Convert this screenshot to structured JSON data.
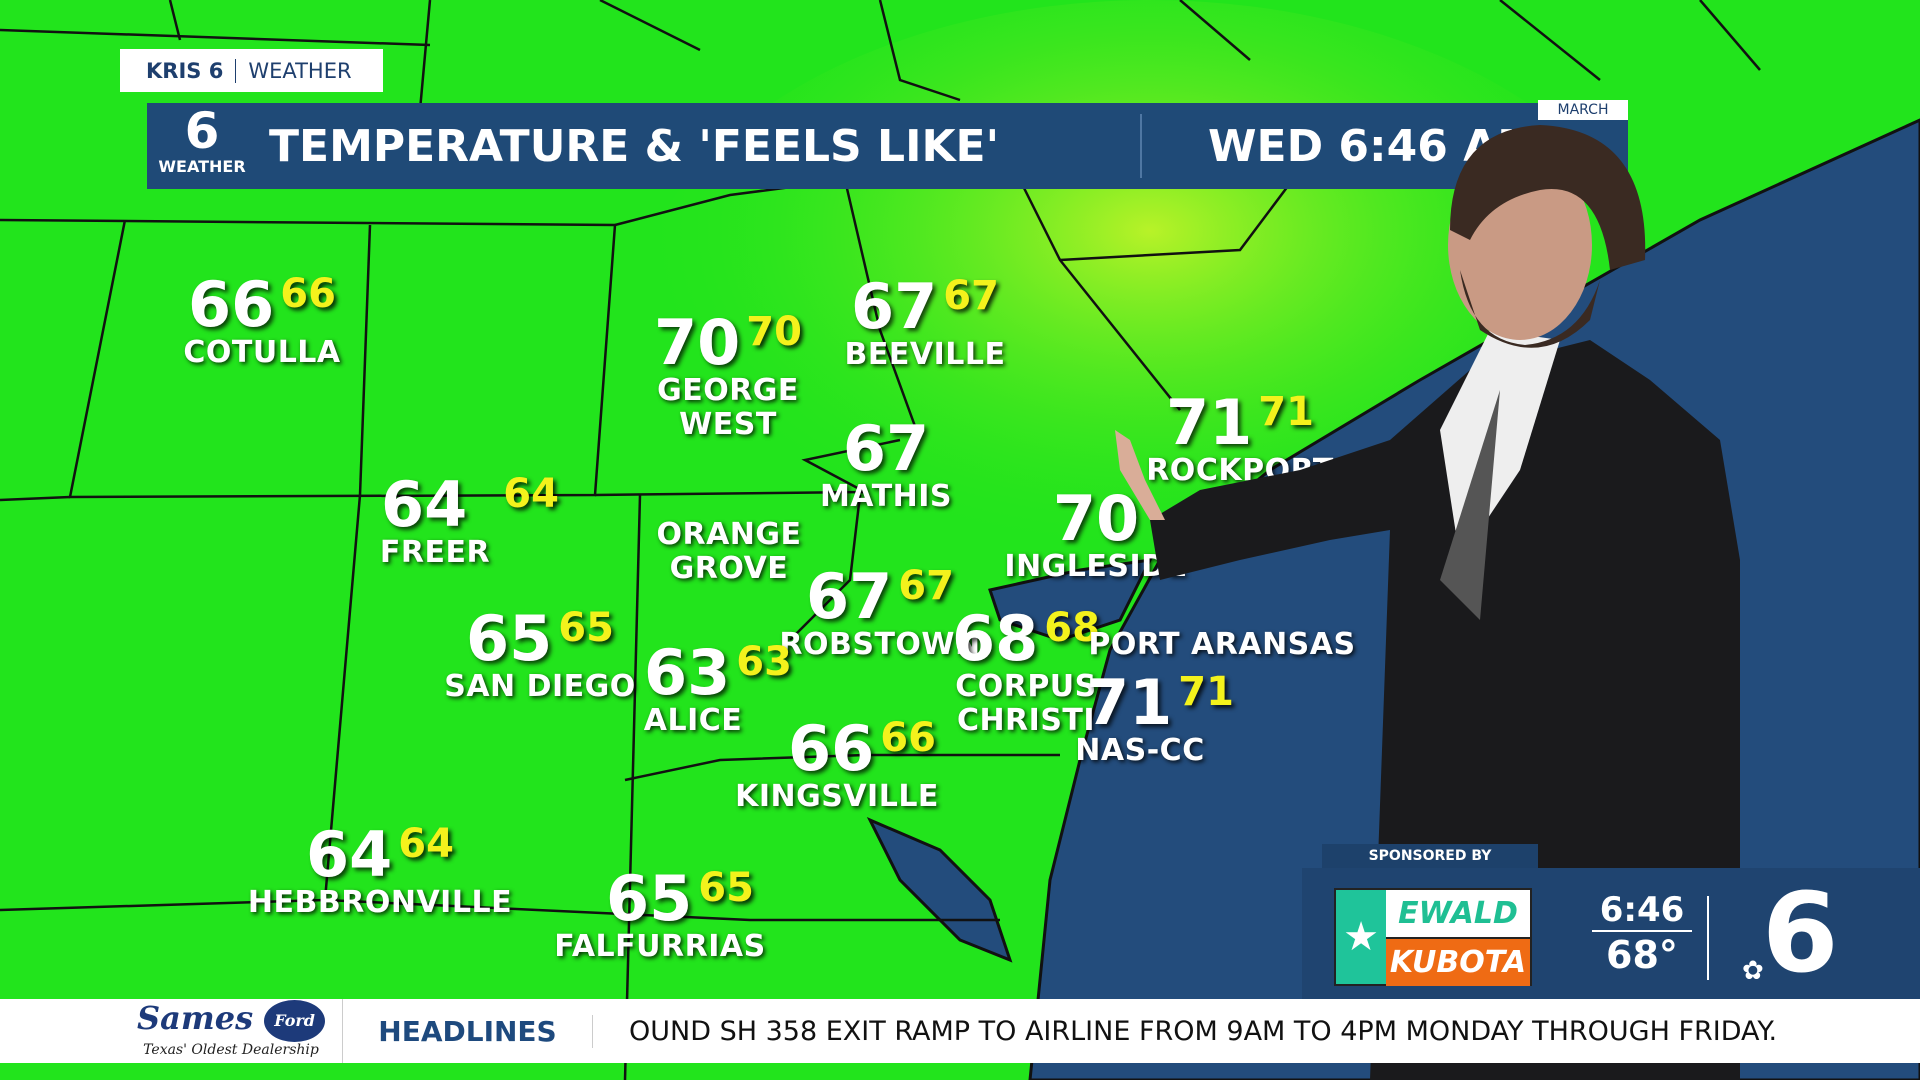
{
  "brand_tab": {
    "station": "KRIS 6",
    "section": "WEATHER"
  },
  "header": {
    "logo_number": "6",
    "logo_label": "WEATHER",
    "title": "TEMPERATURE & 'FEELS LIKE'",
    "time": "WED 6:46 AM",
    "month": "MARCH"
  },
  "cities": [
    {
      "name": "COTULLA",
      "temp": "66",
      "feels": "66"
    },
    {
      "name": "GEORGE WEST",
      "temp": "70",
      "feels": "70"
    },
    {
      "name": "BEEVILLE",
      "temp": "67",
      "feels": "67"
    },
    {
      "name": "MATHIS",
      "temp": "67",
      "feels": ""
    },
    {
      "name": "ROCKPORT",
      "temp": "71",
      "feels": "71"
    },
    {
      "name": "FREER",
      "temp": "64",
      "feels": "64"
    },
    {
      "name": "ORANGE GROVE",
      "temp": "",
      "feels": ""
    },
    {
      "name": "INGLESIDE",
      "temp": "70",
      "feels": ""
    },
    {
      "name": "ROBSTOWN",
      "temp": "67",
      "feels": "67"
    },
    {
      "name": "SAN DIEGO",
      "temp": "65",
      "feels": "65"
    },
    {
      "name": "ALICE",
      "temp": "63",
      "feels": "63"
    },
    {
      "name": "CORPUS CHRISTI",
      "temp": "68",
      "feels": "68"
    },
    {
      "name": "PORT ARANSAS",
      "temp": "",
      "feels": ""
    },
    {
      "name": "NAS-CC",
      "temp": "71",
      "feels": "71"
    },
    {
      "name": "KINGSVILLE",
      "temp": "66",
      "feels": "66"
    },
    {
      "name": "HEBBRONVILLE",
      "temp": "64",
      "feels": "64"
    },
    {
      "name": "FALFURRIAS",
      "temp": "65",
      "feels": "65"
    }
  ],
  "sponsor": {
    "label": "SPONSORED BY",
    "brand_top": "EWALD",
    "brand_bottom": "KUBOTA",
    "time": "6:46",
    "temp": "68°",
    "station_number": "6"
  },
  "ticker": {
    "advertiser": "Sames",
    "advertiser_badge": "Ford",
    "advertiser_tagline": "Texas' Oldest Dealership",
    "section": "HEADLINES",
    "text": "OUND SH 358 EXIT RAMP TO AIRLINE FROM 9AM TO 4PM MONDAY THROUGH FRIDAY."
  },
  "colors": {
    "land": "#22e41c",
    "land_coast": "#a8f020",
    "water": "#234c7c",
    "banner": "#1f4a77",
    "feels_like": "#f4f21c"
  }
}
